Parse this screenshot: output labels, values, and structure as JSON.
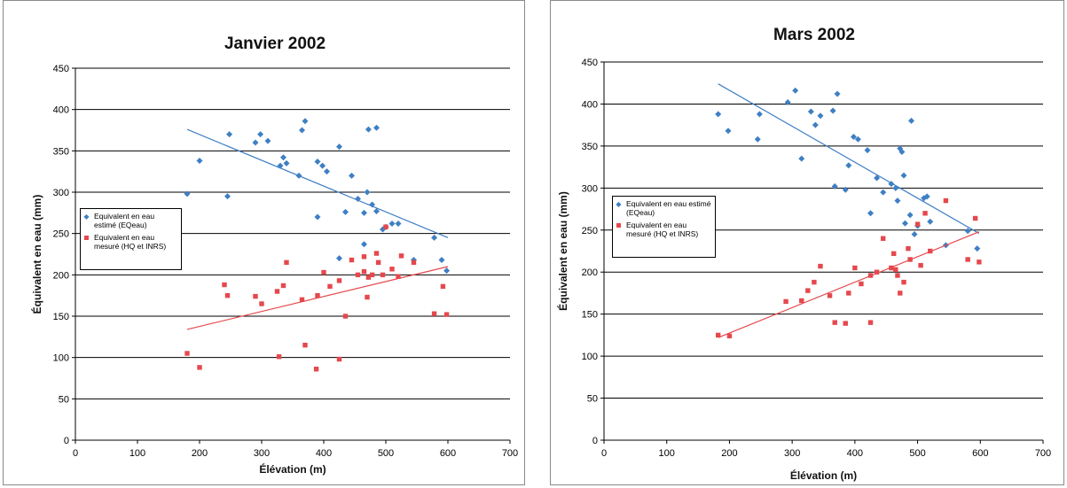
{
  "chart_data": [
    {
      "type": "scatter",
      "title": "Janvier 2002",
      "xlabel": "Élévation (m)",
      "ylabel": "Équivalent en eau (mm)",
      "xlim": [
        0,
        700
      ],
      "ylim": [
        0,
        450
      ],
      "xticks": [
        0,
        100,
        200,
        300,
        400,
        500,
        600,
        700
      ],
      "yticks": [
        0,
        50,
        100,
        150,
        200,
        250,
        300,
        350,
        400,
        450
      ],
      "grid": "horizontal",
      "legend": "left-center",
      "series": [
        {
          "name": "Equivalent en eau estimé (EQeau)",
          "marker": "diamond",
          "color": "#3f7fc4",
          "points": [
            [
              180,
              298
            ],
            [
              200,
              338
            ],
            [
              245,
              295
            ],
            [
              248,
              370
            ],
            [
              290,
              360
            ],
            [
              298,
              370
            ],
            [
              310,
              362
            ],
            [
              330,
              332
            ],
            [
              335,
              342
            ],
            [
              340,
              335
            ],
            [
              360,
              320
            ],
            [
              365,
              375
            ],
            [
              370,
              386
            ],
            [
              390,
              270
            ],
            [
              390,
              337
            ],
            [
              398,
              332
            ],
            [
              405,
              325
            ],
            [
              425,
              220
            ],
            [
              425,
              355
            ],
            [
              435,
              276
            ],
            [
              445,
              320
            ],
            [
              455,
              292
            ],
            [
              465,
              275
            ],
            [
              465,
              237
            ],
            [
              470,
              300
            ],
            [
              472,
              376
            ],
            [
              478,
              285
            ],
            [
              485,
              378
            ],
            [
              485,
              277
            ],
            [
              495,
              255
            ],
            [
              500,
              258
            ],
            [
              510,
              262
            ],
            [
              520,
              262
            ],
            [
              545,
              218
            ],
            [
              578,
              245
            ],
            [
              590,
              218
            ],
            [
              598,
              205
            ]
          ],
          "trend": [
            [
              180,
              376
            ],
            [
              600,
              245
            ]
          ]
        },
        {
          "name": "Equivalent en eau mesuré (HQ et INRS)",
          "marker": "square",
          "color": "#e5484d",
          "points": [
            [
              180,
              105
            ],
            [
              200,
              88
            ],
            [
              240,
              188
            ],
            [
              245,
              175
            ],
            [
              290,
              174
            ],
            [
              300,
              165
            ],
            [
              325,
              180
            ],
            [
              328,
              101
            ],
            [
              335,
              187
            ],
            [
              340,
              215
            ],
            [
              365,
              170
            ],
            [
              370,
              115
            ],
            [
              388,
              86
            ],
            [
              390,
              175
            ],
            [
              400,
              203
            ],
            [
              410,
              186
            ],
            [
              425,
              98
            ],
            [
              425,
              193
            ],
            [
              435,
              150
            ],
            [
              445,
              218
            ],
            [
              455,
              200
            ],
            [
              465,
              222
            ],
            [
              465,
              204
            ],
            [
              470,
              173
            ],
            [
              472,
              197
            ],
            [
              478,
              200
            ],
            [
              485,
              226
            ],
            [
              488,
              215
            ],
            [
              495,
              200
            ],
            [
              500,
              258
            ],
            [
              510,
              207
            ],
            [
              520,
              198
            ],
            [
              525,
              223
            ],
            [
              545,
              215
            ],
            [
              578,
              153
            ],
            [
              592,
              186
            ],
            [
              598,
              152
            ]
          ],
          "trend": [
            [
              180,
              134
            ],
            [
              600,
              210
            ]
          ]
        }
      ]
    },
    {
      "type": "scatter",
      "title": "Mars 2002",
      "xlabel": "Élévation (m)",
      "ylabel": "Équivalent en eau (mm)",
      "xlim": [
        0,
        700
      ],
      "ylim": [
        0,
        450
      ],
      "xticks": [
        0,
        100,
        200,
        300,
        400,
        500,
        600,
        700
      ],
      "yticks": [
        0,
        50,
        100,
        150,
        200,
        250,
        300,
        350,
        400,
        450
      ],
      "grid": "horizontal",
      "legend": "left-center",
      "series": [
        {
          "name": "Equivalent en eau estimé (EQeau)",
          "marker": "diamond",
          "color": "#3f7fc4",
          "points": [
            [
              182,
              388
            ],
            [
              198,
              368
            ],
            [
              245,
              358
            ],
            [
              248,
              388
            ],
            [
              293,
              402
            ],
            [
              305,
              416
            ],
            [
              315,
              335
            ],
            [
              330,
              391
            ],
            [
              337,
              375
            ],
            [
              345,
              386
            ],
            [
              365,
              392
            ],
            [
              368,
              302
            ],
            [
              372,
              412
            ],
            [
              385,
              298
            ],
            [
              390,
              327
            ],
            [
              398,
              361
            ],
            [
              405,
              358
            ],
            [
              420,
              345
            ],
            [
              425,
              270
            ],
            [
              435,
              312
            ],
            [
              445,
              295
            ],
            [
              458,
              305
            ],
            [
              465,
              300
            ],
            [
              468,
              285
            ],
            [
              472,
              347
            ],
            [
              475,
              343
            ],
            [
              478,
              315
            ],
            [
              480,
              258
            ],
            [
              488,
              268
            ],
            [
              490,
              380
            ],
            [
              495,
              245
            ],
            [
              500,
              255
            ],
            [
              510,
              288
            ],
            [
              515,
              290
            ],
            [
              520,
              260
            ],
            [
              545,
              232
            ],
            [
              580,
              249
            ],
            [
              595,
              228
            ]
          ],
          "trend": [
            [
              182,
              424
            ],
            [
              598,
              246
            ]
          ]
        },
        {
          "name": "Equivalent en eau mesuré (HQ et INRS)",
          "marker": "square",
          "color": "#e5484d",
          "points": [
            [
              182,
              125
            ],
            [
              200,
              124
            ],
            [
              290,
              165
            ],
            [
              315,
              166
            ],
            [
              325,
              178
            ],
            [
              335,
              188
            ],
            [
              345,
              207
            ],
            [
              360,
              172
            ],
            [
              368,
              140
            ],
            [
              385,
              139
            ],
            [
              390,
              175
            ],
            [
              400,
              205
            ],
            [
              410,
              186
            ],
            [
              425,
              140
            ],
            [
              425,
              196
            ],
            [
              435,
              200
            ],
            [
              445,
              240
            ],
            [
              458,
              205
            ],
            [
              462,
              222
            ],
            [
              465,
              203
            ],
            [
              468,
              196
            ],
            [
              472,
              175
            ],
            [
              478,
              188
            ],
            [
              485,
              228
            ],
            [
              488,
              215
            ],
            [
              500,
              257
            ],
            [
              505,
              208
            ],
            [
              512,
              270
            ],
            [
              520,
              225
            ],
            [
              545,
              285
            ],
            [
              580,
              215
            ],
            [
              592,
              264
            ],
            [
              598,
              212
            ]
          ],
          "trend": [
            [
              182,
              122
            ],
            [
              598,
              248
            ]
          ]
        }
      ]
    }
  ]
}
